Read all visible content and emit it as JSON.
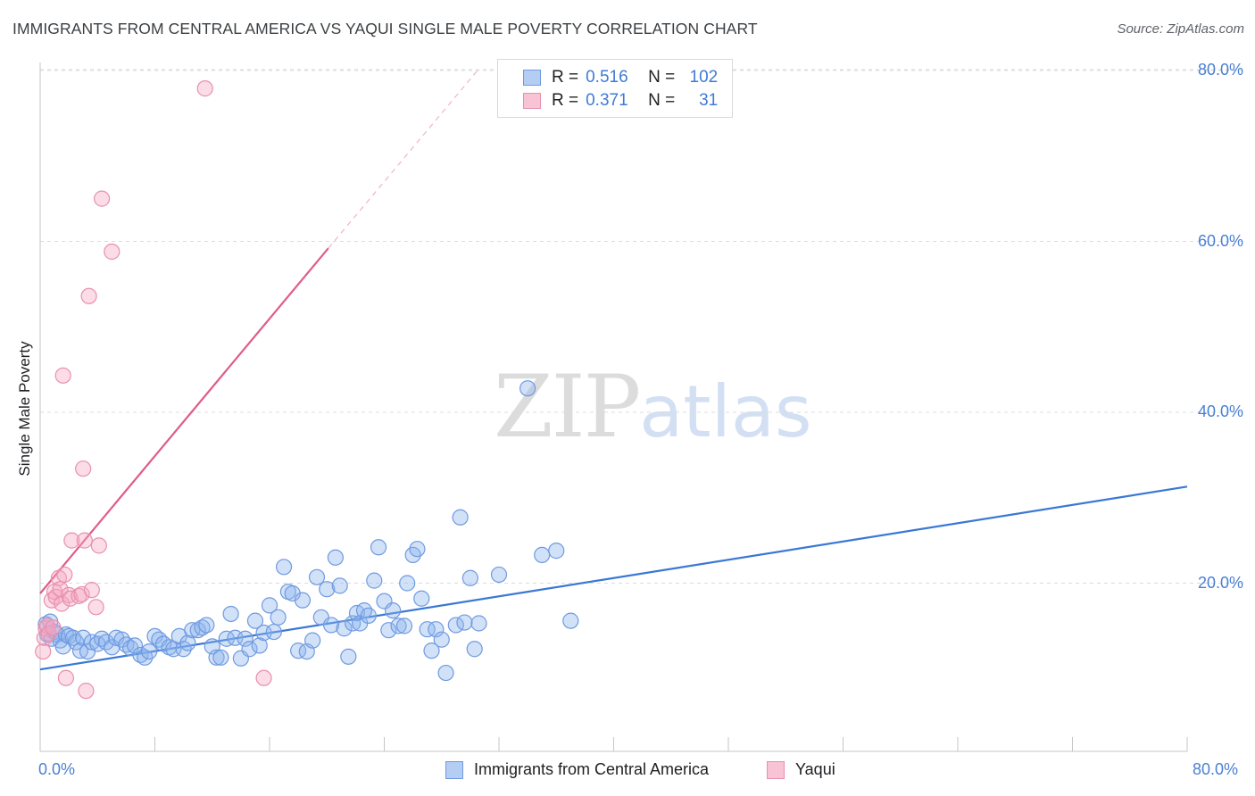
{
  "header": {
    "title": "IMMIGRANTS FROM CENTRAL AMERICA VS YAQUI SINGLE MALE POVERTY CORRELATION CHART",
    "source": "Source: ZipAtlas.com"
  },
  "watermark": {
    "zip": "ZIP",
    "atlas": "atlas"
  },
  "stats": {
    "r_label": "R =",
    "n_label": "N =",
    "rows": [
      {
        "r": "0.516",
        "n": "102",
        "fill": "#b4cdf3",
        "stroke": "#6f9ae0"
      },
      {
        "r": "0.371",
        "n": "31",
        "fill": "#f8c3d4",
        "stroke": "#e890ad"
      }
    ]
  },
  "legend": [
    {
      "label": "Immigrants from Central America",
      "fill": "#b4cdf3",
      "stroke": "#6f9ae0"
    },
    {
      "label": "Yaqui",
      "fill": "#f8c3d4",
      "stroke": "#e890ad"
    }
  ],
  "chart_data": {
    "type": "scatter",
    "xlabel": "",
    "ylabel": "Single Male Poverty",
    "xlim": [
      0,
      80
    ],
    "ylim": [
      0,
      82
    ],
    "x_tick_labels": [
      "0.0%",
      "80.0%"
    ],
    "y_ticks": [
      {
        "value": 20,
        "label": "20.0%"
      },
      {
        "value": 40,
        "label": "40.0%"
      },
      {
        "value": 60,
        "label": "60.0%"
      },
      {
        "value": 80,
        "label": "80.0%"
      }
    ],
    "grid": true,
    "legend_position": "bottom-center",
    "series": [
      {
        "name": "Immigrants from Central America",
        "color": "#3a78d4",
        "fill": "rgba(140,180,238,0.40)",
        "stroke": "#6f9ae0",
        "R": 0.516,
        "N": 102,
        "trend": {
          "x": [
            0,
            80
          ],
          "y": [
            9.9,
            31.3
          ]
        },
        "points": [
          [
            0.4,
            15.2
          ],
          [
            0.5,
            14.0
          ],
          [
            0.7,
            15.5
          ],
          [
            0.8,
            13.5
          ],
          [
            1.0,
            14.3
          ],
          [
            1.2,
            14.0
          ],
          [
            1.4,
            13.3
          ],
          [
            1.6,
            12.6
          ],
          [
            1.8,
            14.0
          ],
          [
            2.0,
            13.8
          ],
          [
            2.3,
            13.6
          ],
          [
            2.5,
            13.1
          ],
          [
            2.8,
            12.1
          ],
          [
            3.0,
            13.6
          ],
          [
            3.3,
            12.0
          ],
          [
            3.6,
            13.1
          ],
          [
            4.0,
            12.9
          ],
          [
            4.3,
            13.5
          ],
          [
            4.6,
            13.1
          ],
          [
            5.0,
            12.5
          ],
          [
            5.3,
            13.6
          ],
          [
            5.7,
            13.4
          ],
          [
            6.0,
            12.8
          ],
          [
            6.3,
            12.4
          ],
          [
            6.6,
            12.7
          ],
          [
            7.0,
            11.6
          ],
          [
            7.3,
            11.3
          ],
          [
            7.6,
            12.0
          ],
          [
            8.0,
            13.8
          ],
          [
            8.3,
            13.4
          ],
          [
            8.6,
            12.9
          ],
          [
            9.0,
            12.5
          ],
          [
            9.3,
            12.3
          ],
          [
            9.7,
            13.8
          ],
          [
            10.0,
            12.3
          ],
          [
            10.3,
            13.0
          ],
          [
            10.6,
            14.5
          ],
          [
            11.0,
            14.5
          ],
          [
            11.3,
            14.8
          ],
          [
            11.6,
            15.1
          ],
          [
            12.0,
            12.6
          ],
          [
            12.3,
            11.3
          ],
          [
            12.6,
            11.3
          ],
          [
            13.0,
            13.5
          ],
          [
            13.3,
            16.4
          ],
          [
            13.6,
            13.6
          ],
          [
            14.0,
            11.2
          ],
          [
            14.3,
            13.5
          ],
          [
            14.6,
            12.3
          ],
          [
            15.0,
            15.6
          ],
          [
            15.3,
            12.7
          ],
          [
            15.6,
            14.2
          ],
          [
            16.0,
            17.4
          ],
          [
            16.3,
            14.3
          ],
          [
            16.6,
            16.0
          ],
          [
            17.0,
            21.9
          ],
          [
            17.3,
            19.0
          ],
          [
            17.6,
            18.8
          ],
          [
            18.0,
            12.1
          ],
          [
            18.3,
            18.0
          ],
          [
            18.6,
            12.0
          ],
          [
            19.0,
            13.3
          ],
          [
            19.3,
            20.7
          ],
          [
            19.6,
            16.0
          ],
          [
            20.0,
            19.3
          ],
          [
            20.3,
            15.1
          ],
          [
            20.6,
            23.0
          ],
          [
            20.9,
            19.7
          ],
          [
            21.2,
            14.7
          ],
          [
            21.5,
            11.4
          ],
          [
            21.8,
            15.3
          ],
          [
            22.1,
            16.5
          ],
          [
            22.3,
            15.3
          ],
          [
            22.6,
            16.8
          ],
          [
            22.9,
            16.2
          ],
          [
            23.3,
            20.3
          ],
          [
            23.6,
            24.2
          ],
          [
            24.0,
            17.9
          ],
          [
            24.3,
            14.5
          ],
          [
            24.6,
            16.8
          ],
          [
            25.0,
            15.0
          ],
          [
            25.4,
            15.0
          ],
          [
            25.6,
            20.0
          ],
          [
            26.0,
            23.3
          ],
          [
            26.3,
            24.0
          ],
          [
            26.6,
            18.2
          ],
          [
            27.0,
            14.6
          ],
          [
            27.3,
            12.1
          ],
          [
            27.6,
            14.6
          ],
          [
            28.0,
            13.4
          ],
          [
            28.3,
            9.5
          ],
          [
            29.0,
            15.1
          ],
          [
            29.3,
            27.7
          ],
          [
            29.6,
            15.4
          ],
          [
            30.0,
            20.6
          ],
          [
            30.3,
            12.3
          ],
          [
            30.6,
            15.3
          ],
          [
            32.0,
            21.0
          ],
          [
            34.0,
            42.8
          ],
          [
            35.0,
            23.3
          ],
          [
            36.0,
            23.8
          ],
          [
            37.0,
            15.6
          ]
        ]
      },
      {
        "name": "Yaqui",
        "color": "#e05b8a",
        "fill": "rgba(245,168,195,0.40)",
        "stroke": "#e890ad",
        "R": 0.371,
        "N": 31,
        "trend": {
          "x": [
            0,
            20.1
          ],
          "y": [
            18.8,
            59.2
          ]
        },
        "trend_extension": {
          "x": [
            20.1,
            30.5
          ],
          "y": [
            59.2,
            80.0
          ]
        },
        "points": [
          [
            0.2,
            12.0
          ],
          [
            0.3,
            13.6
          ],
          [
            0.4,
            14.7
          ],
          [
            0.5,
            15.0
          ],
          [
            0.6,
            14.1
          ],
          [
            0.8,
            18.0
          ],
          [
            1.0,
            19.0
          ],
          [
            1.1,
            18.4
          ],
          [
            1.3,
            20.6
          ],
          [
            1.4,
            19.3
          ],
          [
            1.5,
            17.6
          ],
          [
            1.6,
            44.3
          ],
          [
            1.8,
            8.9
          ],
          [
            2.0,
            18.6
          ],
          [
            2.1,
            18.2
          ],
          [
            2.2,
            25.0
          ],
          [
            2.7,
            18.5
          ],
          [
            2.9,
            18.7
          ],
          [
            3.0,
            33.4
          ],
          [
            3.1,
            25.0
          ],
          [
            3.2,
            7.4
          ],
          [
            3.4,
            53.6
          ],
          [
            3.6,
            19.2
          ],
          [
            3.9,
            17.2
          ],
          [
            4.1,
            24.4
          ],
          [
            4.3,
            65.0
          ],
          [
            5.0,
            58.8
          ],
          [
            11.5,
            77.9
          ],
          [
            15.6,
            8.9
          ],
          [
            0.9,
            14.8
          ],
          [
            1.7,
            21.0
          ]
        ]
      }
    ]
  }
}
